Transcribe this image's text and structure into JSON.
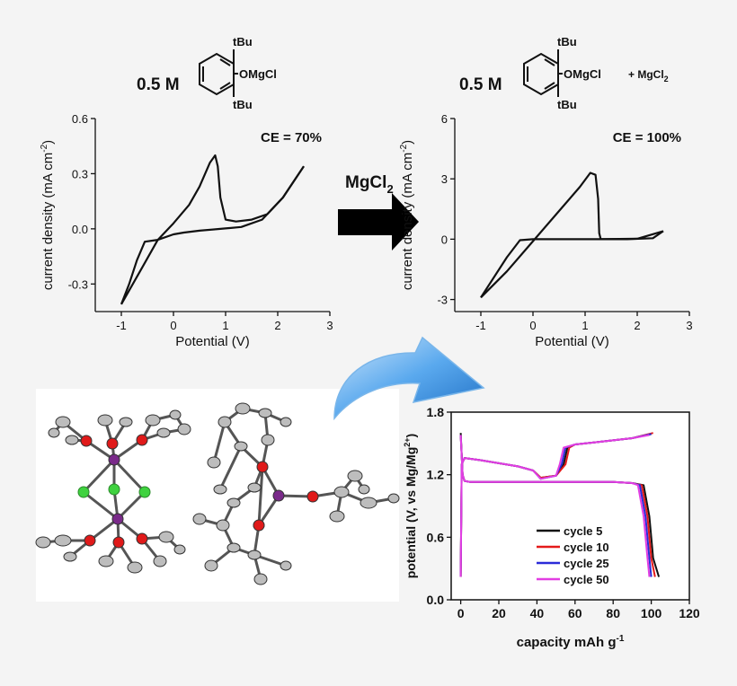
{
  "colors": {
    "background": "#f4f4f4",
    "trace": "#111111",
    "arrow_blue": "#3b93e0",
    "mg": "#7a2a8a",
    "o": "#e01a1a",
    "cl": "#3fd23f",
    "c": "#9a9a9a"
  },
  "top_left": {
    "concentration": "0.5 M",
    "molecule": {
      "top_sub": "tBu",
      "side_sub": "OMgCl",
      "bottom_sub": "tBu"
    }
  },
  "top_right": {
    "concentration": "0.5 M",
    "molecule": {
      "top_sub": "tBu",
      "side_sub": "OMgCl",
      "bottom_sub": "tBu"
    },
    "additive": "+ MgCl",
    "additive_sub": "2"
  },
  "middle_arrow": {
    "label": "MgCl",
    "label_sub": "2"
  },
  "crystal_structure": {
    "description_icon": "ortep-crystal-structure"
  },
  "chart_data": [
    {
      "type": "line",
      "annotation": "CE = 70%",
      "xlabel": "Potential (V)",
      "ylabel_main": "current density (mA cm",
      "ylabel_sup": "-2",
      "ylabel_end": ")",
      "xlim": [
        -1.5,
        3
      ],
      "ylim": [
        -0.45,
        0.6
      ],
      "xticks": [
        -1,
        0,
        1,
        2,
        3
      ],
      "yticks": [
        -0.3,
        0.0,
        0.3,
        0.6
      ],
      "xtick_labels": [
        "-1",
        "0",
        "1",
        "2",
        "3"
      ],
      "ytick_labels": [
        "-0.3",
        "0.0",
        "0.3",
        "0.6"
      ],
      "series": [
        {
          "x": [
            -1.0,
            -0.6,
            -0.3,
            0.0,
            0.3,
            0.5,
            0.7,
            0.8,
            0.85,
            0.9,
            1.0,
            1.2,
            1.5,
            1.8,
            2.1,
            2.5
          ],
          "y": [
            -0.41,
            -0.21,
            -0.06,
            0.03,
            0.13,
            0.23,
            0.36,
            0.4,
            0.34,
            0.17,
            0.05,
            0.04,
            0.05,
            0.08,
            0.17,
            0.34
          ]
        },
        {
          "x": [
            2.5,
            2.1,
            1.7,
            1.3,
            0.9,
            0.5,
            0.2,
            0.0,
            -0.3,
            -0.55,
            -0.7,
            -0.85,
            -1.0
          ],
          "y": [
            0.34,
            0.17,
            0.05,
            0.01,
            0.0,
            -0.01,
            -0.02,
            -0.03,
            -0.06,
            -0.07,
            -0.17,
            -0.3,
            -0.41
          ]
        }
      ]
    },
    {
      "type": "line",
      "annotation": "CE = 100%",
      "xlabel": "Potential (V)",
      "ylabel_main": "current density (mA cm",
      "ylabel_sup": "-2",
      "ylabel_end": ")",
      "xlim": [
        -1.5,
        3
      ],
      "ylim": [
        -3.6,
        6
      ],
      "xticks": [
        -1,
        0,
        1,
        2,
        3
      ],
      "yticks": [
        -3,
        0,
        3,
        6
      ],
      "xtick_labels": [
        "-1",
        "0",
        "1",
        "2",
        "3"
      ],
      "ytick_labels": [
        "-3",
        "0",
        "3",
        "6"
      ],
      "series": [
        {
          "x": [
            -1.0,
            -0.5,
            0.0,
            0.5,
            0.9,
            1.1,
            1.2,
            1.25,
            1.27,
            1.3,
            1.8,
            2.3,
            2.5
          ],
          "y": [
            -2.9,
            -1.6,
            -0.1,
            1.4,
            2.6,
            3.3,
            3.2,
            2.0,
            0.3,
            0.0,
            0.0,
            0.05,
            0.4
          ]
        },
        {
          "x": [
            2.5,
            2.0,
            1.3,
            0.5,
            0.0,
            -0.25,
            -0.5,
            -1.0
          ],
          "y": [
            0.4,
            0.02,
            0.0,
            0.0,
            0.0,
            -0.05,
            -0.9,
            -2.9
          ]
        }
      ]
    },
    {
      "type": "line",
      "xlabel_main": "capacity mAh g",
      "xlabel_sup": "-1",
      "ylabel_main": "potential (V, vs Mg/Mg",
      "ylabel_sup": "2+",
      "ylabel_end": ")",
      "xlim": [
        -5,
        120
      ],
      "ylim": [
        0,
        1.8
      ],
      "xticks": [
        0,
        20,
        40,
        60,
        80,
        100,
        120
      ],
      "yticks": [
        0.0,
        0.6,
        1.2,
        1.8
      ],
      "xtick_labels": [
        "0",
        "20",
        "40",
        "60",
        "80",
        "100",
        "120"
      ],
      "ytick_labels": [
        "0.0",
        "0.6",
        "1.2",
        "1.8"
      ],
      "legend": "bottom-right",
      "series": [
        {
          "name": "cycle 5",
          "color": "#111111",
          "discharge": {
            "x": [
              0,
              1,
              2,
              5,
              10,
              20,
              30,
              40,
              50,
              60,
              70,
              80,
              90,
              96,
              99,
              101,
              104
            ],
            "y": [
              1.6,
              1.2,
              1.14,
              1.13,
              1.13,
              1.13,
              1.13,
              1.13,
              1.13,
              1.13,
              1.13,
              1.13,
              1.12,
              1.1,
              0.8,
              0.4,
              0.22
            ]
          },
          "charge": {
            "x": [
              0,
              0.5,
              2,
              10,
              20,
              30,
              38,
              42,
              50,
              54,
              56,
              60,
              70,
              80,
              90,
              100
            ],
            "y": [
              0.22,
              1.3,
              1.36,
              1.34,
              1.31,
              1.28,
              1.24,
              1.17,
              1.19,
              1.3,
              1.46,
              1.49,
              1.51,
              1.53,
              1.55,
              1.59
            ]
          }
        },
        {
          "name": "cycle 10",
          "color": "#e41a1a",
          "discharge": {
            "x": [
              0,
              1,
              2,
              5,
              10,
              20,
              30,
              40,
              50,
              60,
              70,
              80,
              90,
              95,
              98,
              100,
              102
            ],
            "y": [
              1.58,
              1.2,
              1.14,
              1.13,
              1.13,
              1.13,
              1.13,
              1.13,
              1.13,
              1.13,
              1.13,
              1.13,
              1.12,
              1.1,
              0.8,
              0.4,
              0.22
            ]
          },
          "charge": {
            "x": [
              0,
              0.5,
              2,
              10,
              20,
              30,
              38,
              42,
              50,
              55,
              57,
              60,
              70,
              80,
              90,
              101
            ],
            "y": [
              0.22,
              1.3,
              1.36,
              1.34,
              1.31,
              1.28,
              1.24,
              1.17,
              1.19,
              1.3,
              1.46,
              1.49,
              1.51,
              1.53,
              1.55,
              1.6
            ]
          }
        },
        {
          "name": "cycle 25",
          "color": "#2b2bd8",
          "discharge": {
            "x": [
              0,
              1,
              2,
              5,
              10,
              20,
              30,
              40,
              50,
              60,
              70,
              80,
              90,
              94,
              97,
              99,
              100
            ],
            "y": [
              1.58,
              1.2,
              1.14,
              1.13,
              1.13,
              1.13,
              1.13,
              1.13,
              1.13,
              1.13,
              1.13,
              1.13,
              1.12,
              1.1,
              0.8,
              0.4,
              0.22
            ]
          },
          "charge": {
            "x": [
              0,
              0.5,
              2,
              10,
              20,
              30,
              38,
              42,
              50,
              53,
              55,
              60,
              70,
              80,
              90,
              100
            ],
            "y": [
              0.22,
              1.3,
              1.36,
              1.34,
              1.31,
              1.28,
              1.24,
              1.16,
              1.19,
              1.3,
              1.46,
              1.49,
              1.51,
              1.53,
              1.55,
              1.59
            ]
          }
        },
        {
          "name": "cycle 50",
          "color": "#e23ee2",
          "discharge": {
            "x": [
              0,
              1,
              2,
              5,
              10,
              20,
              30,
              40,
              50,
              60,
              70,
              80,
              90,
              93,
              96,
              98,
              99
            ],
            "y": [
              1.58,
              1.2,
              1.14,
              1.13,
              1.13,
              1.13,
              1.13,
              1.13,
              1.13,
              1.13,
              1.13,
              1.13,
              1.12,
              1.1,
              0.8,
              0.4,
              0.22
            ]
          },
          "charge": {
            "x": [
              0,
              0.5,
              2,
              10,
              20,
              30,
              38,
              42,
              50,
              52,
              54,
              60,
              70,
              80,
              90,
              99
            ],
            "y": [
              0.22,
              1.3,
              1.36,
              1.34,
              1.31,
              1.28,
              1.24,
              1.16,
              1.19,
              1.3,
              1.46,
              1.49,
              1.51,
              1.53,
              1.55,
              1.58
            ]
          }
        }
      ]
    }
  ]
}
